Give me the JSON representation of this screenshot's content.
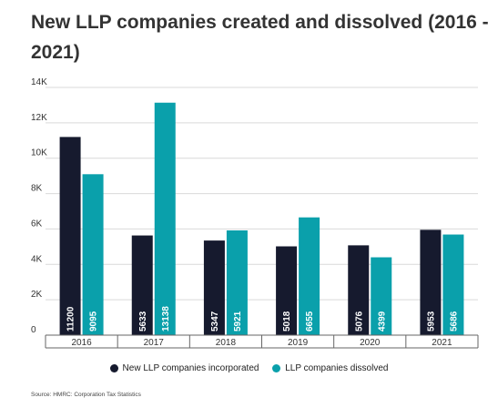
{
  "page": {
    "title": "New LLP companies created and dissolved (2016 - 2021)",
    "source": "Source: HMRC: Corporation Tax Statistics"
  },
  "chart_data": {
    "type": "bar",
    "title": "New LLP companies created and dissolved (2016 - 2021)",
    "xlabel": "",
    "ylabel": "",
    "categories": [
      "2016",
      "2017",
      "2018",
      "2019",
      "2020",
      "2021"
    ],
    "series": [
      {
        "name": "New LLP companies incorporated",
        "color": "#161a2e",
        "values": [
          11200,
          5633,
          5347,
          5018,
          5076,
          5953
        ]
      },
      {
        "name": "LLP companies dissolved",
        "color": "#0aa0ab",
        "values": [
          9095,
          13138,
          5921,
          6655,
          4399,
          5686
        ]
      }
    ],
    "ylim": [
      0,
      14000
    ],
    "yticks": [
      0,
      2000,
      4000,
      6000,
      8000,
      10000,
      12000,
      14000
    ],
    "ytick_labels": [
      "0",
      "2K",
      "4K",
      "6K",
      "8K",
      "10K",
      "12K",
      "14K"
    ],
    "grid": true,
    "legend_position": "bottom"
  }
}
